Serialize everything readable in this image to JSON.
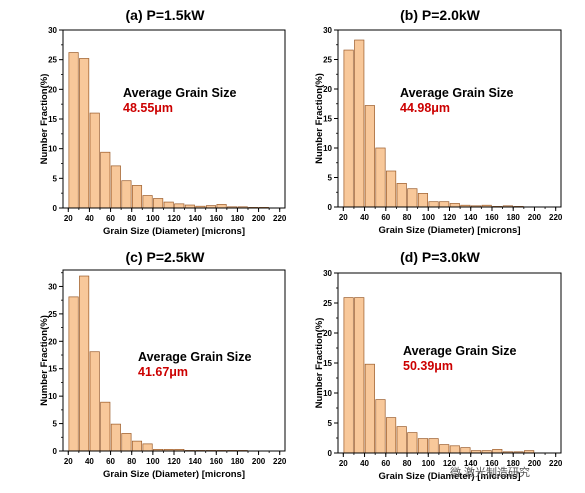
{
  "figure": {
    "watermark": "微 激光制造研究",
    "accent_color": "#cc0000",
    "bar_fill": "#f8c89a",
    "bar_stroke": "#9a5a28"
  },
  "chart_data": [
    {
      "type": "bar",
      "title": "(a) P=1.5kW",
      "xlabel": "Grain Size (Diameter) [microns]",
      "ylabel": "Number Fraction(%)",
      "xlim": [
        15,
        225
      ],
      "ylim": [
        0,
        30
      ],
      "xticks": [
        20,
        40,
        60,
        80,
        100,
        120,
        140,
        160,
        180,
        200,
        220
      ],
      "yticks": [
        0,
        5,
        10,
        15,
        20,
        25,
        30
      ],
      "annotation": "Average Grain Size",
      "average": "48.55μm",
      "bin_width": 10,
      "x": [
        25,
        35,
        45,
        55,
        65,
        75,
        85,
        95,
        105,
        115,
        125,
        135,
        145,
        155,
        165,
        175,
        185,
        195,
        205,
        215
      ],
      "values": [
        26.2,
        25.2,
        16.0,
        9.4,
        7.1,
        4.6,
        3.8,
        2.1,
        1.6,
        1.0,
        0.7,
        0.5,
        0.3,
        0.4,
        0.6,
        0.2,
        0.2,
        0.1,
        0.1,
        0
      ]
    },
    {
      "type": "bar",
      "title": "(b) P=2.0kW",
      "xlabel": "Grain Size (Diameter) [microns]",
      "ylabel": "Number Fraction(%)",
      "xlim": [
        15,
        225
      ],
      "ylim": [
        0,
        30
      ],
      "xticks": [
        20,
        40,
        60,
        80,
        100,
        120,
        140,
        160,
        180,
        200,
        220
      ],
      "yticks": [
        0,
        5,
        10,
        15,
        20,
        25,
        30
      ],
      "annotation": "Average Grain Size",
      "average": "44.98μm",
      "bin_width": 10,
      "x": [
        25,
        35,
        45,
        55,
        65,
        75,
        85,
        95,
        105,
        115,
        125,
        135,
        145,
        155,
        165,
        175,
        185,
        195,
        205,
        215
      ],
      "values": [
        26.6,
        28.3,
        17.2,
        10.0,
        6.1,
        4.0,
        3.1,
        2.3,
        0.9,
        0.9,
        0.6,
        0.3,
        0.2,
        0.3,
        0.1,
        0.2,
        0.1,
        0,
        0,
        0
      ]
    },
    {
      "type": "bar",
      "title": "(c) P=2.5kW",
      "xlabel": "Grain Size (Diameter) [microns]",
      "ylabel": "Number Fraction(%)",
      "xlim": [
        15,
        225
      ],
      "ylim": [
        0,
        33
      ],
      "xticks": [
        20,
        40,
        60,
        80,
        100,
        120,
        140,
        160,
        180,
        200,
        220
      ],
      "yticks": [
        0,
        5,
        10,
        15,
        20,
        25,
        30
      ],
      "annotation": "Average Grain Size",
      "average": "41.67μm",
      "bin_width": 10,
      "x": [
        25,
        35,
        45,
        55,
        65,
        75,
        85,
        95,
        105,
        115,
        125,
        135,
        145,
        155,
        165,
        175,
        185,
        195,
        205,
        215
      ],
      "values": [
        28.1,
        31.9,
        18.1,
        8.9,
        4.9,
        3.2,
        1.8,
        1.3,
        0.3,
        0.3,
        0.3,
        0.1,
        0.1,
        0.1,
        0.1,
        0.1,
        0.1,
        0,
        0,
        0
      ]
    },
    {
      "type": "bar",
      "title": "(d) P=3.0kW",
      "xlabel": "Grain Size (Diameter) [microns]",
      "ylabel": "Number Fraction(%)",
      "xlim": [
        15,
        225
      ],
      "ylim": [
        0,
        30
      ],
      "xticks": [
        20,
        40,
        60,
        80,
        100,
        120,
        140,
        160,
        180,
        200,
        220
      ],
      "yticks": [
        0,
        5,
        10,
        15,
        20,
        25,
        30
      ],
      "annotation": "Average Grain Size",
      "average": "50.39μm",
      "bin_width": 10,
      "x": [
        25,
        35,
        45,
        55,
        65,
        75,
        85,
        95,
        105,
        115,
        125,
        135,
        145,
        155,
        165,
        175,
        185,
        195,
        205,
        215
      ],
      "values": [
        25.9,
        25.9,
        14.8,
        8.9,
        5.9,
        4.4,
        3.4,
        2.4,
        2.4,
        1.4,
        1.2,
        0.9,
        0.4,
        0.4,
        0.6,
        0.2,
        0.2,
        0.4,
        0,
        0
      ]
    }
  ]
}
